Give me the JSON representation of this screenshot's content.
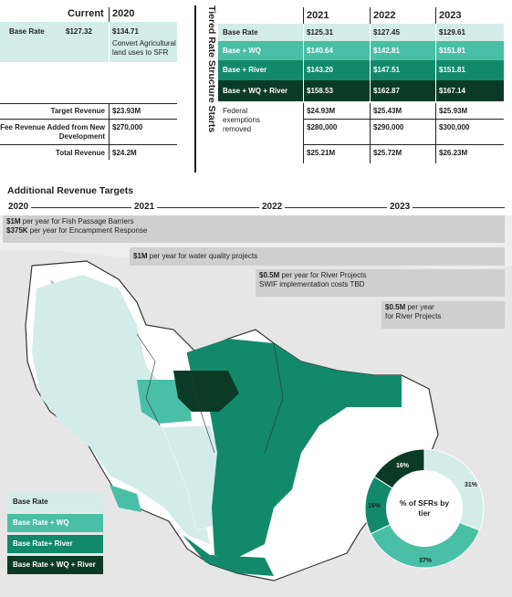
{
  "left_table": {
    "col_current": "Current",
    "col_2020": "2020",
    "base_rate_label": "Base Rate",
    "base_rate_current": "$127.32",
    "base_rate_2020": "$134.71",
    "base_rate_note": "Convert Agricultural land uses to SFR",
    "target_revenue_label": "Target Revenue",
    "target_revenue_value": "$23.93M",
    "fee_revenue_label": "Fee Revenue Added from New Development",
    "fee_revenue_value": "$270,000",
    "total_revenue_label": "Total Revenue",
    "total_revenue_value": "$24.2M"
  },
  "vertical_title": "Tiered Rate Structure Starts",
  "right_table": {
    "years": [
      "2021",
      "2022",
      "2023"
    ],
    "rows": [
      {
        "label": "Base Rate",
        "values": [
          "$125.31",
          "$127.45",
          "$129.61"
        ]
      },
      {
        "label": "Base + WQ",
        "values": [
          "$140.64",
          "$142.81",
          "$151.81"
        ]
      },
      {
        "label": "Base + River",
        "values": [
          "$143.20",
          "$147.51",
          "$151.81"
        ]
      },
      {
        "label": "Base + WQ + River",
        "values": [
          "$158.53",
          "$162.87",
          "$167.14"
        ]
      }
    ],
    "federal_note": "Federal exemptions removed",
    "target_values": [
      "$24.93M",
      "$25.43M",
      "$25.93M"
    ],
    "fee_values": [
      "$280,000",
      "$290,000",
      "$300,000"
    ],
    "total_values": [
      "$25.21M",
      "$25.72M",
      "$26.23M"
    ]
  },
  "timeline": {
    "title": "Additional Revenue Targets",
    "years": [
      "2020",
      "2021",
      "2022",
      "2023"
    ],
    "band1_amount1": "$1M",
    "band1_text1": " per year for Fish Passage Barriers",
    "band1_amount2": "$375K",
    "band1_text2": " per year for Encampment Response",
    "band2_amount": "$1M",
    "band2_text": " per year for water quality projects",
    "band3_amount": "$0.5M",
    "band3_text": " per year for River Projects",
    "band3_line2": "SWIF implementation costs TBD",
    "band4_amount": "$0.5M",
    "band4_text": " per year",
    "band4_line2": "for River Projects"
  },
  "legend": {
    "items": [
      "Base Rate",
      "Base Rate + WQ",
      "Base Rate+ River",
      "Base Rate + WQ + River"
    ]
  },
  "donut": {
    "center_label": "% of SFRs by tier",
    "slices": [
      {
        "label": "31%",
        "value": 31,
        "color": "#d3ece8"
      },
      {
        "label": "37%",
        "value": 37,
        "color": "#49bfa5"
      },
      {
        "label": "16%",
        "value": 16,
        "color": "#128a6a"
      },
      {
        "label": "16%",
        "value": 16,
        "color": "#0b3b27"
      }
    ]
  },
  "colors": {
    "base": "#d3ece8",
    "wq": "#49bfa5",
    "river": "#128a6a",
    "all": "#0b3b27",
    "band": "#cfcfcf"
  }
}
